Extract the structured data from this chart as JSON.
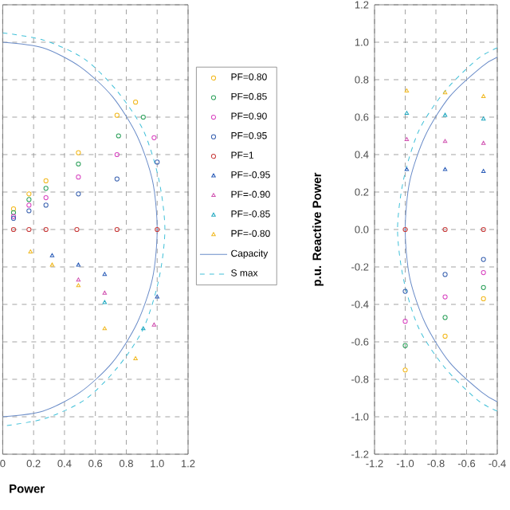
{
  "chart_data": [
    {
      "type": "scatter",
      "xlabel": "Power",
      "xlim": [
        0,
        1.2
      ],
      "ylim": [
        -1.2,
        1.2
      ],
      "xticks": [
        0,
        {
          "value": 0.2,
          "label": "0.2"
        },
        {
          "value": 0.4,
          "label": "0.4"
        },
        {
          "value": 0.6,
          "label": "0.6"
        },
        {
          "value": 0.8,
          "label": "0.8"
        },
        {
          "value": 1,
          "label": "1.0"
        },
        {
          "value": 1.2,
          "label": "1.2"
        }
      ],
      "yticks": [
        -1.2,
        -1,
        -0.8,
        -0.6,
        -0.4,
        -0.2,
        0,
        0.2,
        0.4,
        0.6,
        0.8,
        1,
        1.2
      ],
      "tick_labels": "x",
      "grid": true,
      "legend": "right",
      "series": [
        {
          "name": "PF=0.80",
          "color": "#f2b81c",
          "marker": "circle",
          "x": [
            0.86,
            0.74,
            0.49,
            0.28,
            0.17,
            0.07
          ],
          "values": [
            0.68,
            0.61,
            0.41,
            0.26,
            0.19,
            0.11
          ]
        },
        {
          "name": "PF=0.85",
          "color": "#2ca05a",
          "marker": "circle",
          "x": [
            0.91,
            0.75,
            0.49,
            0.28,
            0.17,
            0.07
          ],
          "values": [
            0.6,
            0.5,
            0.35,
            0.22,
            0.16,
            0.09
          ]
        },
        {
          "name": "PF=0.90",
          "color": "#d844c0",
          "marker": "circle",
          "x": [
            0.98,
            0.74,
            0.49,
            0.28,
            0.17,
            0.07
          ],
          "values": [
            0.49,
            0.4,
            0.28,
            0.17,
            0.13,
            0.07
          ]
        },
        {
          "name": "PF=0.95",
          "color": "#3a62b0",
          "marker": "circle",
          "x": [
            1.0,
            0.74,
            0.49,
            0.28,
            0.17,
            0.07
          ],
          "values": [
            0.36,
            0.27,
            0.19,
            0.13,
            0.1,
            0.06
          ]
        },
        {
          "name": "PF=1",
          "color": "#c83a3a",
          "marker": "circle",
          "x": [
            1.0,
            0.74,
            0.48,
            0.28,
            0.17,
            0.07
          ],
          "values": [
            0,
            0,
            0,
            0,
            0,
            0
          ]
        },
        {
          "name": "PF=-0.95",
          "color": "#2a5cb8",
          "marker": "triangle",
          "x": [
            1.0,
            0.66,
            0.49,
            0.32
          ],
          "values": [
            -0.36,
            -0.24,
            -0.19,
            -0.14
          ]
        },
        {
          "name": "PF=-0.90",
          "color": "#d050b0",
          "marker": "triangle",
          "x": [
            0.98,
            0.66,
            0.49
          ],
          "values": [
            -0.51,
            -0.34,
            -0.27
          ]
        },
        {
          "name": "PF=-0.85",
          "color": "#20a8c0",
          "marker": "triangle",
          "x": [
            0.91,
            0.66
          ],
          "values": [
            -0.53,
            -0.39
          ]
        },
        {
          "name": "PF=-0.80",
          "color": "#f0b820",
          "marker": "triangle",
          "x": [
            0.86,
            0.66,
            0.49,
            0.32,
            0.18
          ],
          "values": [
            -0.69,
            -0.53,
            -0.3,
            -0.19,
            -0.12
          ]
        },
        {
          "name": "Capacity",
          "type": "line",
          "color": "#6a8cc8",
          "line_style": "solid",
          "x": [
            0,
            0.26,
            0.5,
            0.71,
            0.87,
            0.97,
            1,
            0.97,
            0.87,
            0.71,
            0.5,
            0.26,
            0
          ],
          "values": [
            1,
            0.97,
            0.87,
            0.71,
            0.5,
            0.26,
            0,
            -0.26,
            -0.5,
            -0.71,
            -0.87,
            -0.97,
            -1
          ]
        },
        {
          "name": "S max",
          "type": "line",
          "color": "#40c0d8",
          "line_style": "dashed",
          "x": [
            0,
            0.27,
            0.53,
            0.74,
            0.91,
            1.01,
            1.05,
            1.01,
            0.91,
            0.74,
            0.53,
            0.27,
            0
          ],
          "values": [
            1.05,
            1.01,
            0.91,
            0.74,
            0.53,
            0.27,
            0,
            -0.27,
            -0.53,
            -0.74,
            -0.91,
            -1.01,
            -1.05
          ]
        }
      ]
    },
    {
      "type": "scatter",
      "ylabel": "p.u. Reactive Power",
      "xlim": [
        -1.2,
        -0.4
      ],
      "ylim": [
        -1.2,
        1.2
      ],
      "xticks": [
        {
          "value": -1.2,
          "label": "-1.2"
        },
        {
          "value": -1,
          "label": "-1.0"
        },
        {
          "value": -0.8,
          "label": "-0.8"
        },
        {
          "value": -0.6,
          "label": "-0.6"
        },
        {
          "value": -0.4,
          "label": "-0.4"
        }
      ],
      "yticks": [
        {
          "value": -1.2,
          "label": "-1.2"
        },
        {
          "value": -1,
          "label": "-1.0"
        },
        {
          "value": -0.8,
          "label": "-0.8"
        },
        {
          "value": -0.6,
          "label": "-0.6"
        },
        {
          "value": -0.4,
          "label": "-0.4"
        },
        {
          "value": -0.2,
          "label": "-0.2"
        },
        {
          "value": 0,
          "label": "0.0"
        },
        {
          "value": 0.2,
          "label": "0.2"
        },
        {
          "value": 0.4,
          "label": "0.4"
        },
        {
          "value": 0.6,
          "label": "0.6"
        },
        {
          "value": 0.8,
          "label": "0.8"
        },
        {
          "value": 1,
          "label": "1.0"
        },
        {
          "value": 1.2,
          "label": "1.2"
        }
      ],
      "grid": true,
      "series": [
        {
          "color": "#f2b81c",
          "marker": "circle",
          "x": [
            -1.0,
            -0.74,
            -0.49
          ],
          "values": [
            -0.75,
            -0.57,
            -0.37
          ]
        },
        {
          "color": "#2ca05a",
          "marker": "circle",
          "x": [
            -1.0,
            -0.74,
            -0.49
          ],
          "values": [
            -0.62,
            -0.47,
            -0.31
          ]
        },
        {
          "color": "#d844c0",
          "marker": "circle",
          "x": [
            -1.0,
            -0.74,
            -0.49
          ],
          "values": [
            -0.49,
            -0.36,
            -0.23
          ]
        },
        {
          "color": "#3a62b0",
          "marker": "circle",
          "x": [
            -1.0,
            -0.74,
            -0.49
          ],
          "values": [
            -0.33,
            -0.24,
            -0.16
          ]
        },
        {
          "color": "#c83a3a",
          "marker": "circle",
          "x": [
            -1.0,
            -0.74,
            -0.49
          ],
          "values": [
            0,
            0,
            0
          ]
        },
        {
          "color": "#2a5cb8",
          "marker": "triangle",
          "x": [
            -0.99,
            -0.74,
            -0.49
          ],
          "values": [
            0.32,
            0.32,
            0.31
          ]
        },
        {
          "color": "#d050b0",
          "marker": "triangle",
          "x": [
            -0.99,
            -0.74,
            -0.49
          ],
          "values": [
            0.48,
            0.47,
            0.46
          ]
        },
        {
          "color": "#20a8c0",
          "marker": "triangle",
          "x": [
            -0.99,
            -0.74,
            -0.49
          ],
          "values": [
            0.62,
            0.61,
            0.59
          ]
        },
        {
          "color": "#f0b820",
          "marker": "triangle",
          "x": [
            -0.99,
            -0.74,
            -0.49
          ],
          "values": [
            0.74,
            0.73,
            0.71
          ]
        },
        {
          "type": "line",
          "color": "#6a8cc8",
          "line_style": "solid",
          "x": [
            -0.4,
            -0.5,
            -0.71,
            -0.87,
            -0.97,
            -1,
            -0.97,
            -0.87,
            -0.71,
            -0.5,
            -0.4
          ],
          "values": [
            0.92,
            0.87,
            0.71,
            0.5,
            0.26,
            0,
            -0.26,
            -0.5,
            -0.71,
            -0.87,
            -0.92
          ]
        },
        {
          "type": "line",
          "color": "#40c0d8",
          "line_style": "dashed",
          "x": [
            -0.4,
            -0.53,
            -0.74,
            -0.91,
            -1.01,
            -1.05,
            -1.01,
            -0.91,
            -0.74,
            -0.53,
            -0.4
          ],
          "values": [
            0.97,
            0.91,
            0.74,
            0.53,
            0.27,
            0,
            -0.27,
            -0.53,
            -0.74,
            -0.91,
            -0.97
          ]
        }
      ]
    }
  ]
}
